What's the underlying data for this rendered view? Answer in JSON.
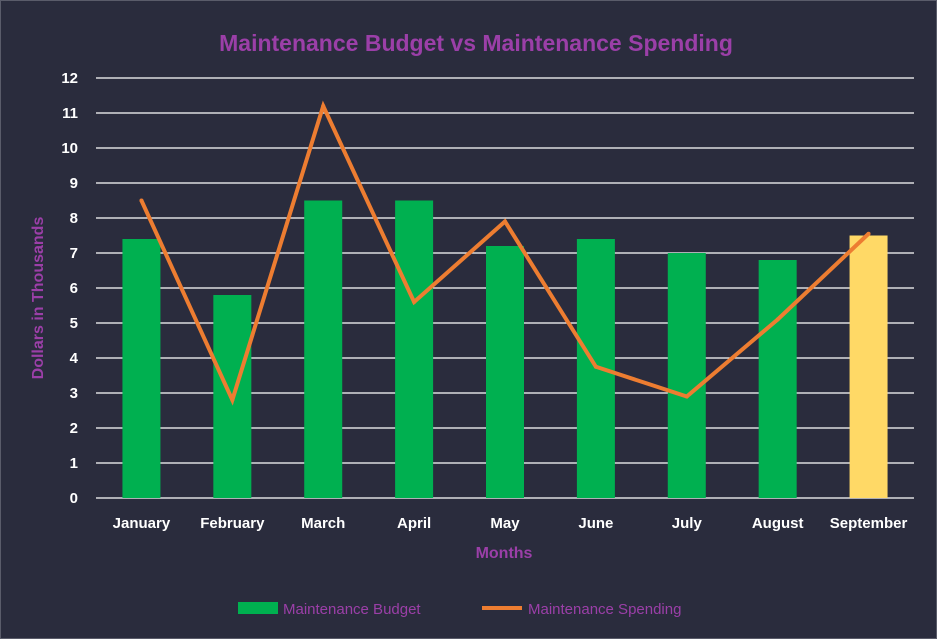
{
  "chart_data": {
    "type": "bar",
    "title": "Maintenance Budget vs Maintenance Spending",
    "xlabel": "Months",
    "ylabel": "Dollars in Thousands",
    "ylim": [
      0,
      12
    ],
    "yticks": [
      "0",
      "1",
      "2",
      "3",
      "4",
      "5",
      "6",
      "7",
      "8",
      "9",
      "10",
      "11",
      "12"
    ],
    "grid": true,
    "legend_position": "bottom",
    "categories": [
      "January",
      "February",
      "March",
      "April",
      "May",
      "June",
      "July",
      "August",
      "September"
    ],
    "series": [
      {
        "name": "Maintenance Budget",
        "kind": "bar",
        "color": "#00b050",
        "highlight_color": "#ffd966",
        "highlight_index": 8,
        "values": [
          7.4,
          5.8,
          8.5,
          8.5,
          7.2,
          7.4,
          7.0,
          6.8,
          7.5
        ]
      },
      {
        "name": "Maintenance Spending",
        "kind": "line",
        "color": "#ed7d31",
        "values": [
          8.5,
          2.8,
          11.2,
          5.6,
          7.9,
          3.75,
          2.9,
          5.1,
          7.55
        ]
      }
    ]
  },
  "colors": {
    "background": "#2a2c3d",
    "grid": "#ffffff",
    "title": "#9b3fa8",
    "text": "#ffffff"
  }
}
